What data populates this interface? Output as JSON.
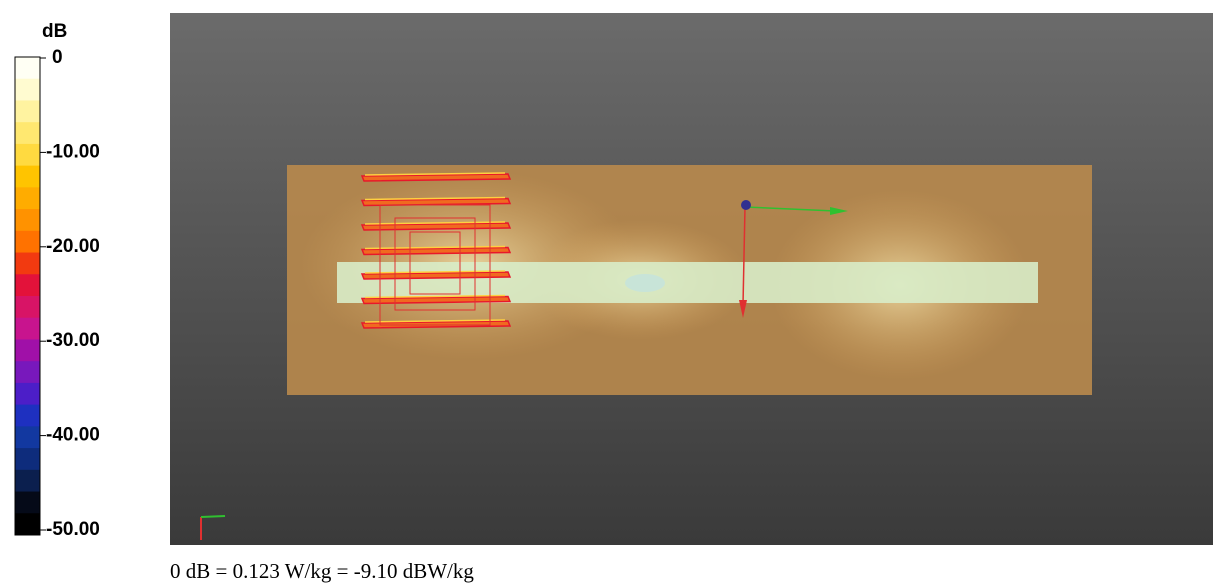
{
  "colorbar": {
    "unit": "dB",
    "ticks": [
      "0",
      "-10.00",
      "-20.00",
      "-30.00",
      "-40.00",
      "-50.00"
    ]
  },
  "caption": "0 dB = 0.123 W/kg = -9.10 dBW/kg"
}
